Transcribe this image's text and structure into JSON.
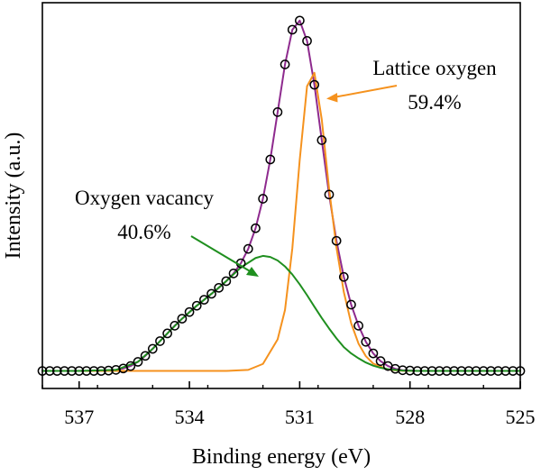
{
  "chart_data": {
    "type": "line",
    "xlabel": "Binding energy (eV)",
    "ylabel": "Intensity (a.u.)",
    "xlim": [
      538,
      525
    ],
    "x_reversed": true,
    "ylim": [
      -5,
      105
    ],
    "xticks": [
      {
        "value": 537,
        "label": "537"
      },
      {
        "value": 534,
        "label": "534"
      },
      {
        "value": 531,
        "label": "531"
      },
      {
        "value": 528,
        "label": "528"
      },
      {
        "value": 525,
        "label": "525"
      }
    ],
    "y_tick_labels_shown": false,
    "grid": false,
    "legend": "none",
    "series": [
      {
        "kind": "scatter",
        "marker": "open-circle",
        "color": "#000000",
        "x": [
          538.0,
          537.8,
          537.6,
          537.4,
          537.2,
          537.0,
          536.8,
          536.6,
          536.4,
          536.2,
          536.0,
          535.8,
          535.6,
          535.4,
          535.2,
          535.0,
          534.8,
          534.6,
          534.4,
          534.2,
          534.0,
          533.8,
          533.6,
          533.4,
          533.2,
          533.0,
          532.8,
          532.6,
          532.4,
          532.2,
          532.0,
          531.8,
          531.6,
          531.4,
          531.2,
          531.0,
          530.8,
          530.6,
          530.4,
          530.2,
          530.0,
          529.8,
          529.6,
          529.4,
          529.2,
          529.0,
          528.8,
          528.6,
          528.4,
          528.2,
          528.0,
          527.8,
          527.6,
          527.4,
          527.2,
          527.0,
          526.8,
          526.6,
          526.4,
          526.2,
          526.0,
          525.8,
          525.6,
          525.4,
          525.2,
          525.0
        ],
        "y": [
          0.0,
          0.0,
          0.0,
          0.0,
          0.0,
          0.0,
          0.0,
          0.0,
          0.0,
          0.1,
          0.3,
          0.7,
          1.4,
          2.6,
          4.3,
          6.3,
          8.5,
          10.7,
          12.9,
          14.9,
          16.8,
          18.6,
          20.3,
          22.0,
          23.7,
          25.6,
          27.8,
          30.7,
          34.8,
          40.7,
          49.1,
          60.3,
          73.8,
          87.4,
          97.3,
          99.9,
          94.1,
          81.6,
          65.8,
          50.3,
          37.1,
          26.8,
          18.9,
          12.9,
          8.3,
          5.0,
          2.8,
          1.4,
          0.6,
          0.2,
          0.1,
          0.0,
          0.0,
          0.0,
          0.0,
          0.0,
          0.0,
          0.0,
          0.0,
          0.0,
          0.0,
          0.0,
          0.0,
          0.0,
          0.0,
          0.0
        ]
      },
      {
        "kind": "line",
        "role": "envelope",
        "color": "#8e2a8e",
        "x": [
          538.0,
          537.8,
          537.6,
          537.4,
          537.2,
          537.0,
          536.8,
          536.6,
          536.4,
          536.2,
          536.0,
          535.8,
          535.6,
          535.4,
          535.2,
          535.0,
          534.8,
          534.6,
          534.4,
          534.2,
          534.0,
          533.8,
          533.6,
          533.4,
          533.2,
          533.0,
          532.8,
          532.6,
          532.4,
          532.2,
          532.0,
          531.8,
          531.6,
          531.4,
          531.2,
          531.0,
          530.8,
          530.6,
          530.4,
          530.2,
          530.0,
          529.8,
          529.6,
          529.4,
          529.2,
          529.0,
          528.8,
          528.6,
          528.4,
          528.2,
          528.0,
          527.8,
          527.6,
          527.4,
          527.2,
          527.0,
          526.8,
          526.6,
          526.4,
          526.2,
          526.0,
          525.8,
          525.6,
          525.4,
          525.2,
          525.0
        ],
        "y": [
          0.0,
          0.0,
          0.0,
          0.0,
          0.0,
          0.0,
          0.0,
          0.0,
          0.0,
          0.1,
          0.3,
          0.7,
          1.4,
          2.6,
          4.3,
          6.3,
          8.5,
          10.7,
          12.9,
          14.9,
          16.8,
          18.6,
          20.3,
          22.0,
          23.7,
          25.6,
          27.8,
          30.7,
          34.8,
          40.7,
          49.1,
          60.3,
          73.8,
          87.4,
          97.3,
          99.9,
          94.1,
          81.6,
          65.8,
          50.3,
          37.1,
          26.8,
          18.9,
          12.9,
          8.3,
          5.0,
          2.8,
          1.4,
          0.6,
          0.2,
          0.1,
          0.0,
          0.0,
          0.0,
          0.0,
          0.0,
          0.0,
          0.0,
          0.0,
          0.0,
          0.0,
          0.0,
          0.0,
          0.0,
          0.0,
          0.0
        ]
      },
      {
        "kind": "line",
        "role": "component",
        "color": "#f5921e",
        "x": [
          538.0,
          533.0,
          532.4,
          532.0,
          531.6,
          531.4,
          531.2,
          531.0,
          530.8,
          530.6,
          530.4,
          530.2,
          530.0,
          529.8,
          529.6,
          529.4,
          529.2,
          529.0,
          528.6,
          528.2,
          527.6,
          525.0
        ],
        "y": [
          0.0,
          0.0,
          0.3,
          2.0,
          9.0,
          17.4,
          35.0,
          60.1,
          81.2,
          85.0,
          71.7,
          51.9,
          35.2,
          22.5,
          13.6,
          7.8,
          4.2,
          2.1,
          0.4,
          0.05,
          0.0,
          0.0
        ]
      },
      {
        "kind": "line",
        "role": "component",
        "color": "#1f8f1f",
        "x": [
          538.0,
          537.0,
          536.0,
          535.4,
          535.0,
          534.6,
          534.2,
          533.8,
          533.4,
          533.0,
          532.6,
          532.2,
          532.0,
          531.8,
          531.6,
          531.4,
          531.2,
          531.0,
          530.8,
          530.6,
          530.4,
          530.2,
          530.0,
          529.8,
          529.6,
          529.4,
          529.2,
          529.0,
          528.8,
          528.6,
          528.2,
          527.8,
          527.0,
          525.0
        ],
        "y": [
          0.0,
          0.0,
          0.3,
          2.6,
          6.3,
          10.7,
          14.9,
          18.6,
          22.0,
          25.6,
          29.5,
          32.2,
          32.8,
          32.5,
          31.5,
          29.8,
          27.5,
          24.7,
          21.6,
          18.3,
          15.1,
          12.1,
          9.3,
          6.8,
          5.0,
          3.6,
          2.4,
          1.5,
          0.9,
          0.5,
          0.1,
          0.0,
          0.0,
          0.0
        ]
      }
    ],
    "annotations": [
      {
        "name": "lattice",
        "lines": [
          "Lattice oxygen",
          "59.4%"
        ],
        "color": "#f5921e"
      },
      {
        "name": "vacancy",
        "lines": [
          "Oxygen vacancy",
          "40.6%"
        ],
        "color": "#1f8f1f"
      }
    ]
  }
}
